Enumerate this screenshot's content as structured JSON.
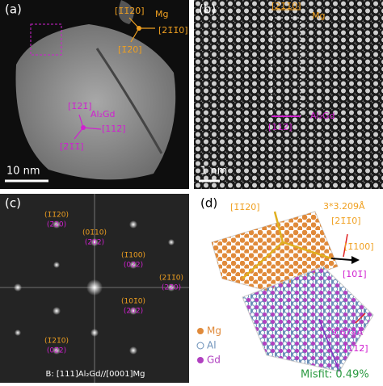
{
  "panels": {
    "a": {
      "label": "(a)",
      "scale_bar": "10 nm",
      "mg": {
        "name": "Mg",
        "dirs": [
          "[1̄1̄20]",
          "[21̄1̄0]",
          "[1̄2̄0]"
        ]
      },
      "al2gd": {
        "name": "Al₂Gd",
        "dirs": [
          "[1̄21̄]",
          "[112̄]",
          "[2̄1̄1̄]"
        ]
      }
    },
    "b": {
      "label": "(b)",
      "mg_dir": "[21̄1̄0]",
      "mg": "Mg",
      "al2gd": "Al₂Gd",
      "al2gd_dir": "[112̄]",
      "scale_bar": "1 nm"
    },
    "c": {
      "label": "(c)",
      "spots": [
        [
          "(1̄1̄20)",
          "(2̄20)"
        ],
        [
          "(01̄10)",
          "(2̄02)"
        ],
        [
          "(1̄100)",
          "(02̄2)"
        ],
        [
          "(21̄1̄0)",
          "(22̄0)"
        ],
        [
          "(101̄0)",
          "(202̄)"
        ],
        [
          "(1̄21̄0)",
          "(02̄2)"
        ]
      ],
      "caption": "B: [111]Al₂Gd//[0001]Mg"
    },
    "d": {
      "label": "(d)",
      "labels": [
        "[1̄1̄20]",
        "3*3.209Å",
        "[21̄1̄0]",
        "[1̄100]",
        "[101̄]",
        "9.674Å",
        "[112̄]"
      ],
      "legend": [
        "Mg",
        "Al",
        "Gd"
      ],
      "misfit": "Misfit: 0.49%"
    }
  }
}
